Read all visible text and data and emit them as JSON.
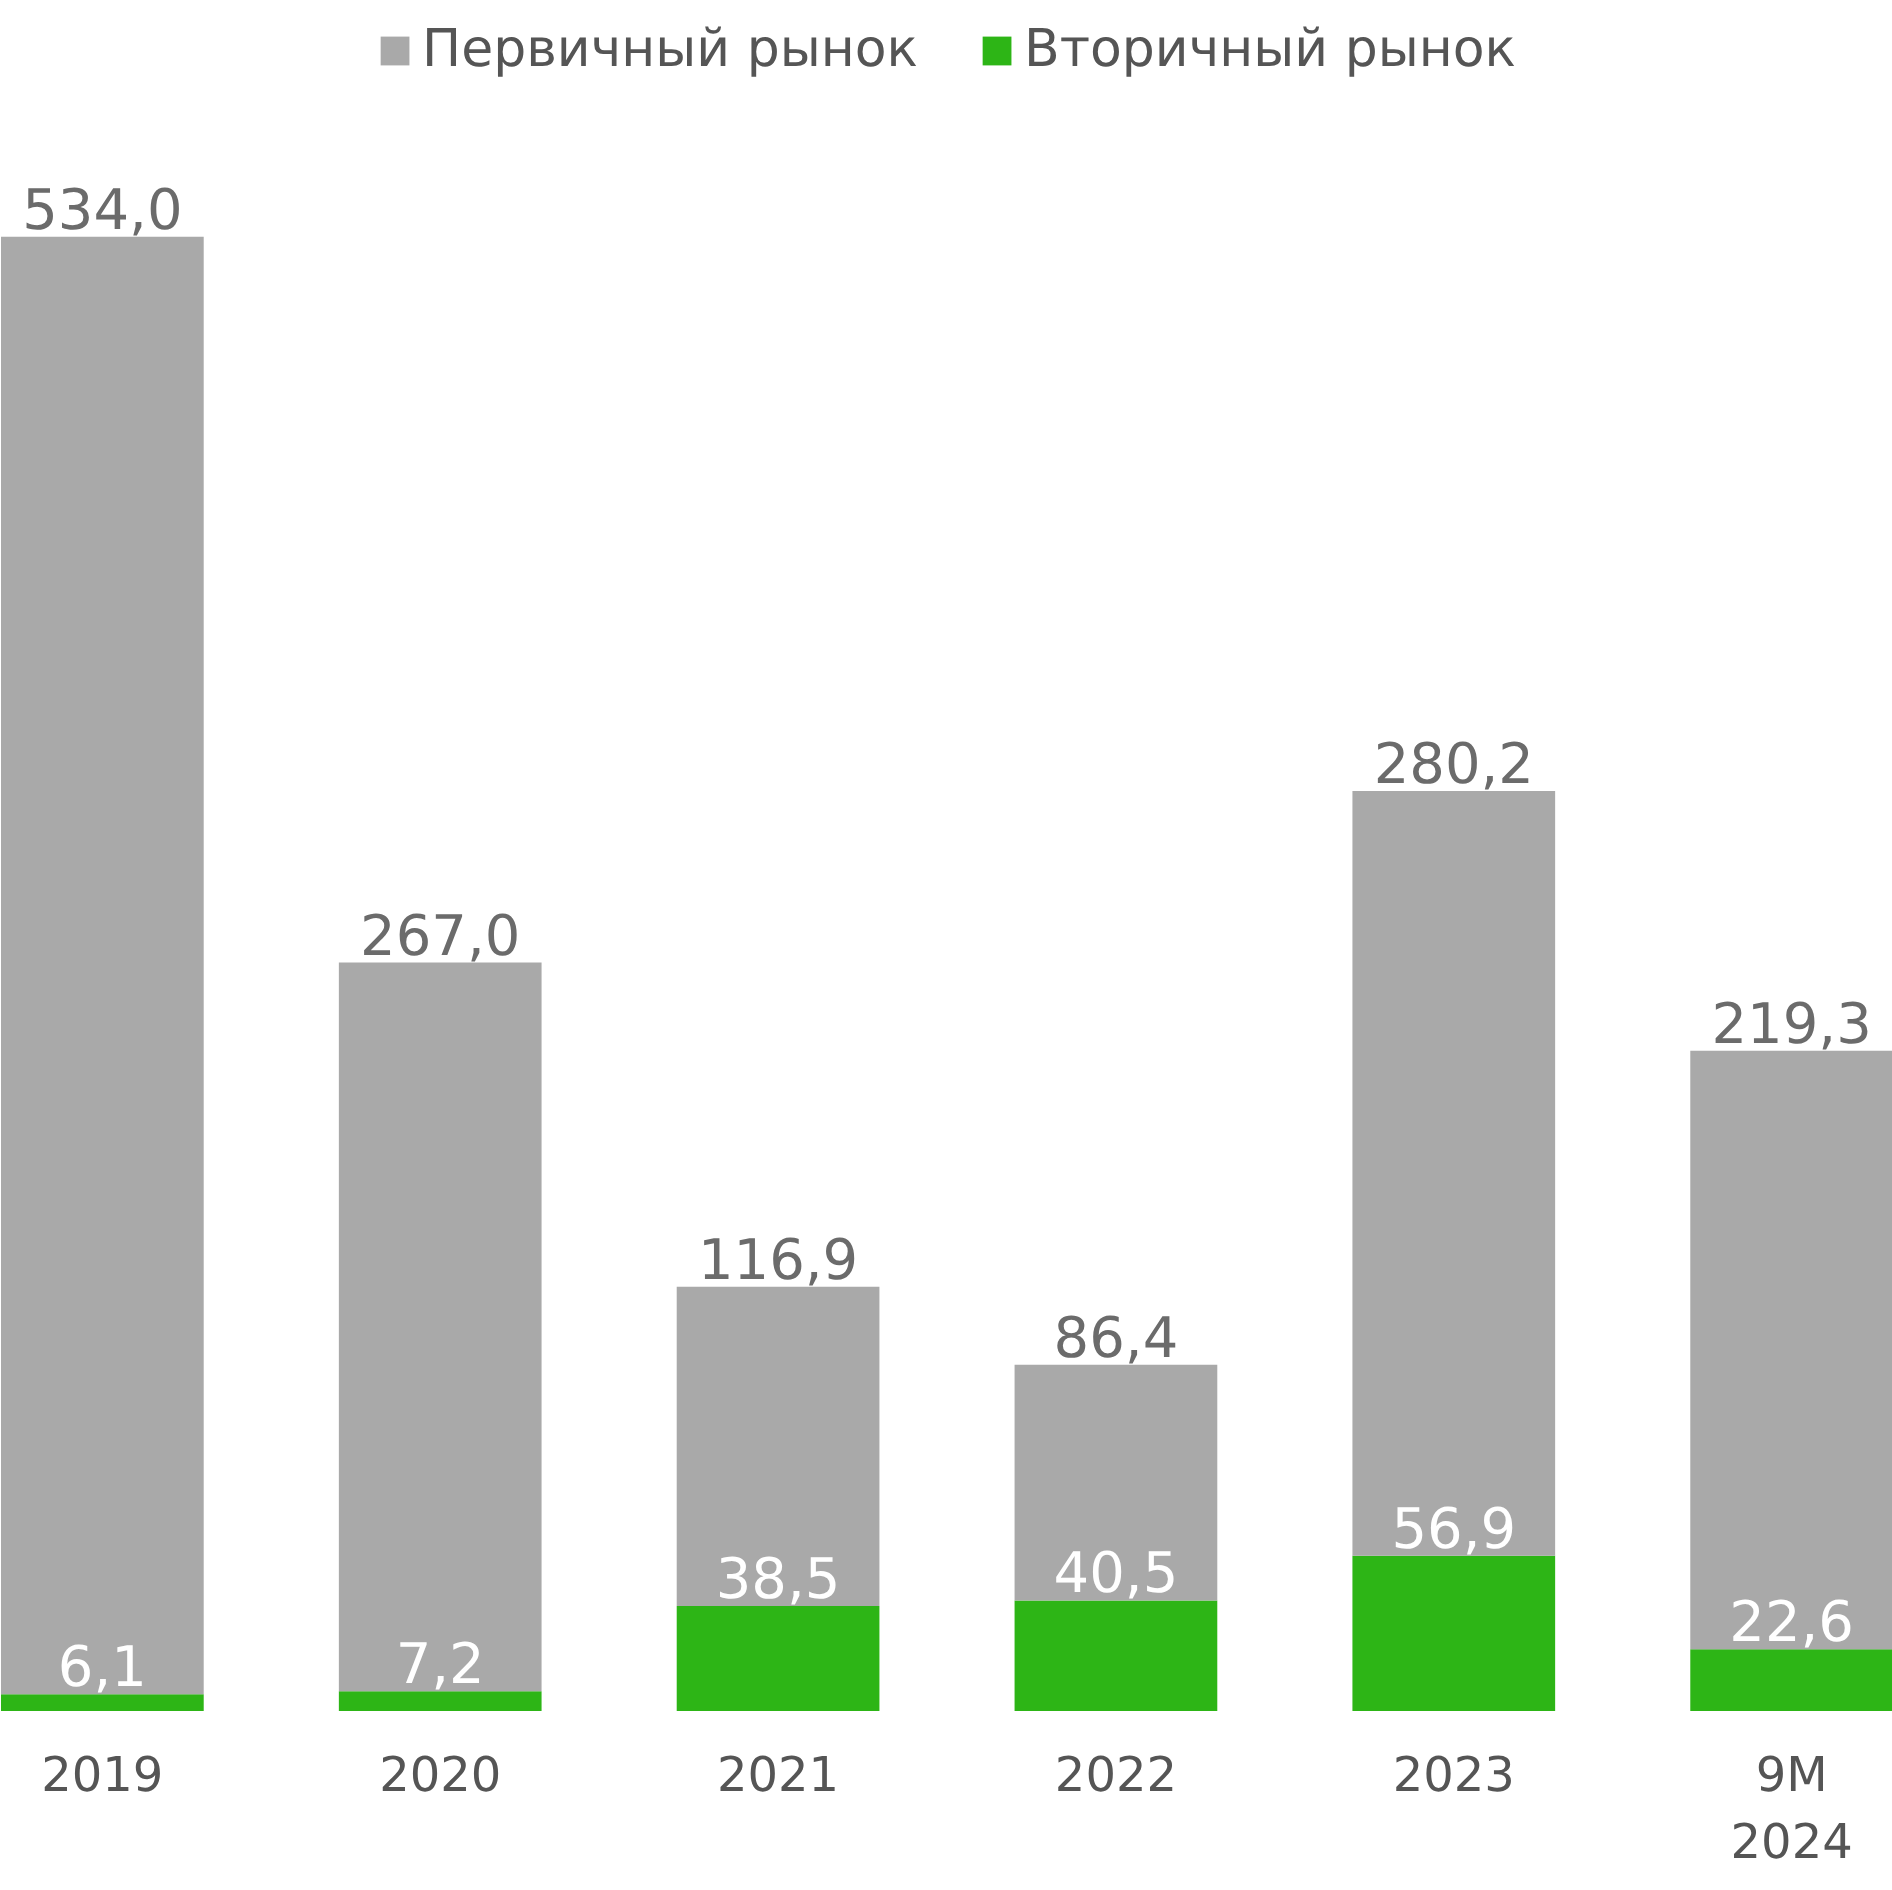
{
  "chart_data": {
    "type": "bar",
    "stacked": true,
    "categories": [
      "2019",
      "2020",
      "2021",
      "2022",
      "2023",
      "9M\n2024"
    ],
    "series": [
      {
        "name": "Вторичный рынок",
        "color": "#2db516",
        "values": [
          6.1,
          7.2,
          38.5,
          40.5,
          56.9,
          22.6
        ],
        "value_labels": [
          "6,1",
          "7,2",
          "38,5",
          "40,5",
          "56,9",
          "22,6"
        ]
      },
      {
        "name": "Первичный рынок",
        "color": "#a9a9a9",
        "values": [
          534.0,
          267.0,
          116.9,
          86.4,
          280.2,
          219.3
        ],
        "value_labels": [
          "534,0",
          "267,0",
          "116,9",
          "86,4",
          "280,2",
          "219,3"
        ]
      }
    ],
    "legend": "top",
    "grid": false
  }
}
